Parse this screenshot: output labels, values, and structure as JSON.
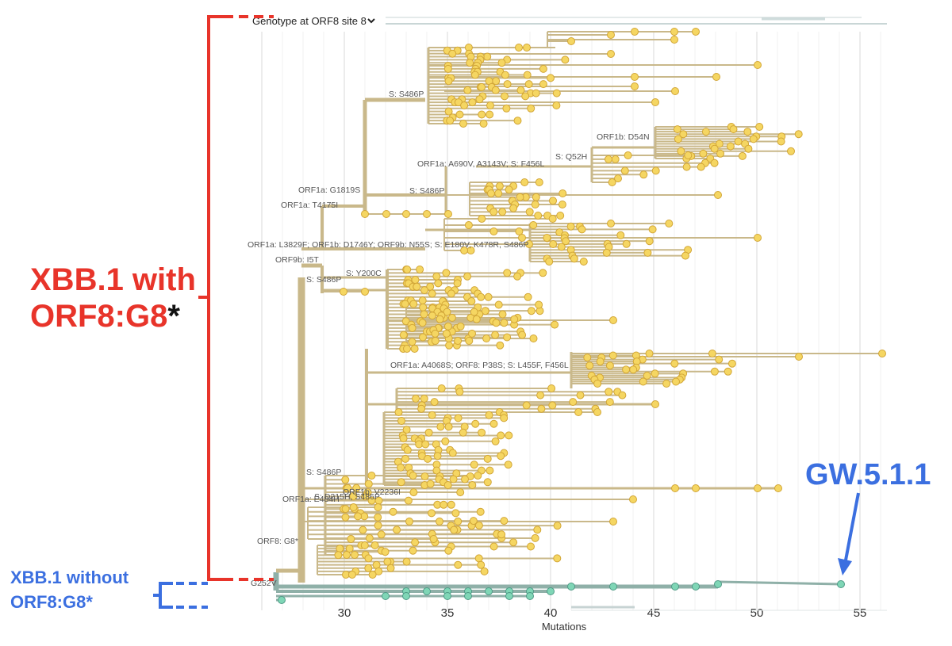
{
  "tree_view": {
    "dropdown": {
      "label": "Genotype at ORF8 site 8",
      "icon": "chevron-down-icon"
    },
    "x_axis": {
      "title": "Mutations",
      "ticks": [
        30,
        35,
        40,
        45,
        50,
        55
      ],
      "range": [
        26,
        56
      ]
    },
    "colors": {
      "xbb_branch": "#c9b88a",
      "xbb_tip_fill": "#f5d662",
      "xbb_tip_stroke": "#d2a637",
      "gw_branch": "#8fb0a8",
      "gw_tip_fill": "#7fd6b6",
      "gw_tip_stroke": "#4f9a86",
      "red_annotation": "#e8342a",
      "blue_annotation": "#3b6fe0"
    }
  },
  "branch_labels": [
    {
      "text": "S: S486P"
    },
    {
      "text": "ORF1b: D54N"
    },
    {
      "text": "S: Q52H"
    },
    {
      "text": "ORF1a: A690V, A3143V; S: F456L"
    },
    {
      "text": "ORF1a: G1819S"
    },
    {
      "text": "S: S486P"
    },
    {
      "text": "ORF1a: T4175I"
    },
    {
      "text": "ORF1a: L3829F; ORF1b: D1746Y; ORF9b: N55S; S: E180V, K478R, S486P"
    },
    {
      "text": "ORF9b: I5T"
    },
    {
      "text": "S: Y200C"
    },
    {
      "text": "S: S486P"
    },
    {
      "text": "ORF1a: A4068S; ORF8: P38S; S: L455F, F456L"
    },
    {
      "text": "S: S486P"
    },
    {
      "text": "ORF1b: V2236I"
    },
    {
      "text": "S: D215H, S486P"
    },
    {
      "text": "ORF1a: E484H"
    },
    {
      "text": "ORF8: G8*"
    },
    {
      "text": "G252V"
    }
  ],
  "annotations": {
    "xbb_with": {
      "line1": "XBB.1 with",
      "line2": "ORF8:G8",
      "star": "*"
    },
    "xbb_without": {
      "line1": "XBB.1 without",
      "line2": "ORF8:G8*"
    },
    "gw_label": "GW.5.1.1"
  }
}
